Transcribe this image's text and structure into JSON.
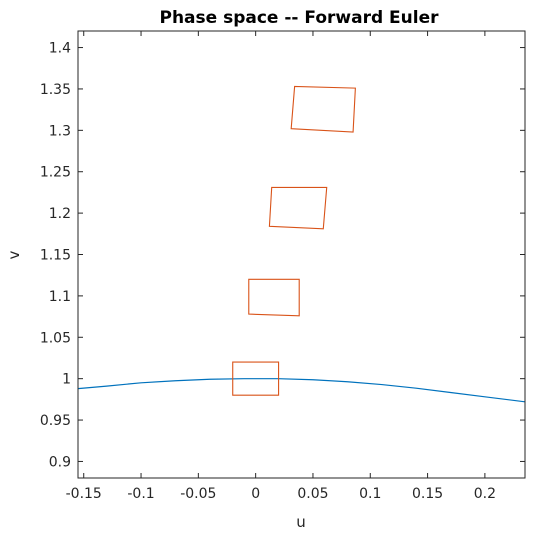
{
  "chart_data": {
    "type": "line",
    "title": "Phase space -- Forward Euler",
    "xlabel": "u",
    "ylabel": "v",
    "xlim": [
      -0.155,
      0.235
    ],
    "ylim": [
      0.88,
      1.42
    ],
    "xticks": [
      -0.15,
      -0.1,
      -0.05,
      0,
      0.05,
      0.1,
      0.15,
      0.2
    ],
    "xtick_labels": [
      "-0.15",
      "-0.1",
      "-0.05",
      "0",
      "0.05",
      "0.1",
      "0.15",
      "0.2"
    ],
    "yticks": [
      0.9,
      0.95,
      1,
      1.05,
      1.1,
      1.15,
      1.2,
      1.25,
      1.3,
      1.35,
      1.4
    ],
    "ytick_labels": [
      "0.9",
      "0.95",
      "1",
      "1.05",
      "1.1",
      "1.15",
      "1.2",
      "1.25",
      "1.3",
      "1.35",
      "1.4"
    ],
    "grid": false,
    "box": true,
    "colors": {
      "curve": "#0072BD",
      "quads": "#D95319",
      "axis": "#262626"
    },
    "curve": {
      "u": [
        -0.155,
        -0.13,
        -0.1,
        -0.07,
        -0.04,
        -0.01,
        0.02,
        0.05,
        0.08,
        0.11,
        0.14,
        0.17,
        0.2,
        0.235
      ],
      "v": [
        0.988,
        0.991,
        0.995,
        0.9975,
        0.9993,
        1.0,
        1.0,
        0.9987,
        0.9963,
        0.9929,
        0.9885,
        0.9833,
        0.9781,
        0.972
      ]
    },
    "quads": [
      {
        "points": [
          [
            -0.02,
            0.98
          ],
          [
            0.02,
            0.98
          ],
          [
            0.02,
            1.02
          ],
          [
            -0.02,
            1.02
          ]
        ]
      },
      {
        "points": [
          [
            -0.006,
            1.078
          ],
          [
            0.038,
            1.076
          ],
          [
            0.038,
            1.12
          ],
          [
            -0.006,
            1.12
          ]
        ]
      },
      {
        "points": [
          [
            0.012,
            1.184
          ],
          [
            0.059,
            1.181
          ],
          [
            0.062,
            1.231
          ],
          [
            0.014,
            1.231
          ]
        ]
      },
      {
        "points": [
          [
            0.031,
            1.302
          ],
          [
            0.085,
            1.298
          ],
          [
            0.087,
            1.351
          ],
          [
            0.034,
            1.353
          ]
        ]
      }
    ]
  }
}
